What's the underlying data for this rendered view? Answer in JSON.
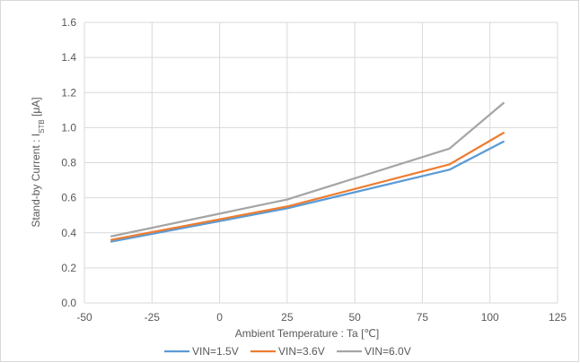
{
  "chart_data": {
    "type": "line",
    "xlabel": "Ambient Temperature : Ta [℃]",
    "ylabel_main": "Stand-by Current : I",
    "ylabel_sub": "STB",
    "ylabel_unit": " [μA]",
    "xlim": [
      -50,
      125
    ],
    "ylim": [
      0.0,
      1.6
    ],
    "xticks": [
      "-50",
      "-25",
      "0",
      "25",
      "50",
      "75",
      "100",
      "125"
    ],
    "yticks": [
      "0.0",
      "0.2",
      "0.4",
      "0.6",
      "0.8",
      "1.0",
      "1.2",
      "1.4",
      "1.6"
    ],
    "grid": true,
    "legend_position": "bottom",
    "x": [
      -40,
      25,
      85,
      105
    ],
    "series": [
      {
        "name": "VIN=1.5V",
        "color": "#5b9bd5",
        "values": [
          0.35,
          0.54,
          0.76,
          0.92
        ]
      },
      {
        "name": "VIN=3.6V",
        "color": "#ed7d31",
        "values": [
          0.36,
          0.55,
          0.79,
          0.97
        ]
      },
      {
        "name": "VIN=6.0V",
        "color": "#a5a5a5",
        "values": [
          0.38,
          0.59,
          0.88,
          1.14
        ]
      }
    ]
  }
}
